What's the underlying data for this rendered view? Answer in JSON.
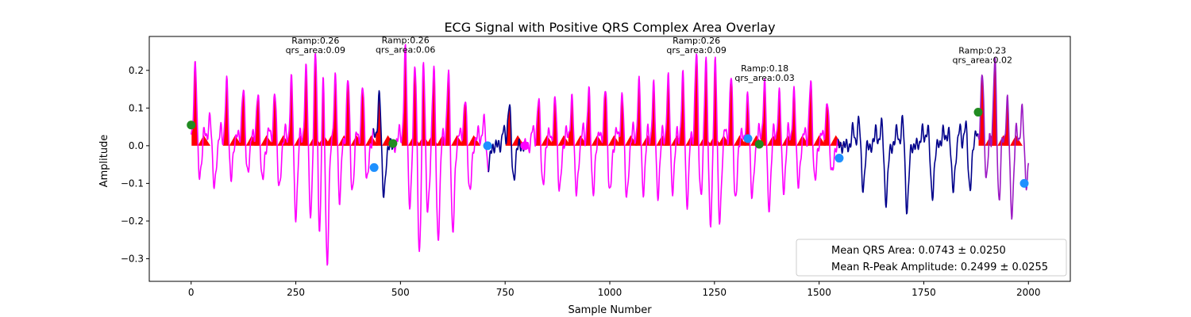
{
  "chart_data": {
    "type": "line",
    "title": "ECG Signal with Positive QRS Complex Area Overlay",
    "xlabel": "Sample Number",
    "ylabel": "Amplitude",
    "xlim": [
      -100,
      2100
    ],
    "ylim": [
      -0.36,
      0.29
    ],
    "x_ticks": [
      0,
      250,
      500,
      750,
      1000,
      1250,
      1500,
      1750,
      2000
    ],
    "x_tick_labels": [
      "0",
      "250",
      "500",
      "750",
      "1000",
      "1250",
      "1500",
      "1750",
      "2000"
    ],
    "y_ticks": [
      -0.3,
      -0.2,
      -0.1,
      0.0,
      0.1,
      0.2
    ],
    "y_tick_labels": [
      "−0.3",
      "−0.2",
      "−0.1",
      "0.0",
      "0.1",
      "0.2"
    ],
    "grid": false,
    "legend_placement": "lower-right",
    "legend": [
      "Mean QRS Area: 0.0743 ± 0.0250",
      "Mean R-Peak Amplitude: 0.2499 ± 0.0255"
    ],
    "colors": {
      "signal_navy": "#00008b",
      "segment_magenta": "#ff00ff",
      "segment_purple": "#9c1ac4",
      "qrs_fill": "#ff0000",
      "boundary_green": "#228b22",
      "boundary_blue": "#1e90ff",
      "boundary_magenta": "#ff00ff"
    },
    "segments": [
      {
        "start": 0,
        "end": 435,
        "color": "#ff00ff"
      },
      {
        "start": 435,
        "end": 485,
        "color": "#00008b"
      },
      {
        "start": 485,
        "end": 710,
        "color": "#ff00ff"
      },
      {
        "start": 710,
        "end": 795,
        "color": "#00008b"
      },
      {
        "start": 795,
        "end": 1330,
        "color": "#ff00ff"
      },
      {
        "start": 1330,
        "end": 1545,
        "color": "#ff00ff"
      },
      {
        "start": 1545,
        "end": 1880,
        "color": "#00008b"
      },
      {
        "start": 1880,
        "end": 2000,
        "color": "#9c1ac4"
      }
    ],
    "beat_peaks": [
      {
        "x": 10,
        "amp": 0.23,
        "depth": -0.09
      },
      {
        "x": 45,
        "amp": 0.09,
        "depth": -0.11
      },
      {
        "x": 85,
        "amp": 0.17,
        "depth": -0.08
      },
      {
        "x": 125,
        "amp": 0.16,
        "depth": -0.08
      },
      {
        "x": 160,
        "amp": 0.15,
        "depth": -0.1
      },
      {
        "x": 200,
        "amp": 0.15,
        "depth": -0.11
      },
      {
        "x": 240,
        "amp": 0.18,
        "depth": -0.19
      },
      {
        "x": 275,
        "amp": 0.21,
        "depth": -0.22
      },
      {
        "x": 297,
        "amp": 0.25,
        "depth": -0.26
      },
      {
        "x": 315,
        "amp": 0.23,
        "depth": -0.33
      },
      {
        "x": 345,
        "amp": 0.19,
        "depth": -0.16
      },
      {
        "x": 375,
        "amp": 0.18,
        "depth": -0.12
      },
      {
        "x": 410,
        "amp": 0.16,
        "depth": -0.09
      },
      {
        "x": 450,
        "amp": 0.15,
        "depth": -0.14
      },
      {
        "x": 512,
        "amp": 0.26,
        "depth": -0.2
      },
      {
        "x": 535,
        "amp": 0.23,
        "depth": -0.32
      },
      {
        "x": 555,
        "amp": 0.25,
        "depth": -0.22
      },
      {
        "x": 580,
        "amp": 0.21,
        "depth": -0.25
      },
      {
        "x": 615,
        "amp": 0.2,
        "depth": -0.23
      },
      {
        "x": 655,
        "amp": 0.14,
        "depth": -0.13
      },
      {
        "x": 700,
        "amp": 0.07,
        "depth": -0.06
      },
      {
        "x": 760,
        "amp": 0.12,
        "depth": -0.09
      },
      {
        "x": 830,
        "amp": 0.13,
        "depth": -0.1
      },
      {
        "x": 870,
        "amp": 0.13,
        "depth": -0.12
      },
      {
        "x": 910,
        "amp": 0.14,
        "depth": -0.13
      },
      {
        "x": 950,
        "amp": 0.15,
        "depth": -0.12
      },
      {
        "x": 990,
        "amp": 0.16,
        "depth": -0.13
      },
      {
        "x": 1030,
        "amp": 0.15,
        "depth": -0.14
      },
      {
        "x": 1070,
        "amp": 0.17,
        "depth": -0.12
      },
      {
        "x": 1105,
        "amp": 0.16,
        "depth": -0.13
      },
      {
        "x": 1140,
        "amp": 0.18,
        "depth": -0.12
      },
      {
        "x": 1175,
        "amp": 0.19,
        "depth": -0.16
      },
      {
        "x": 1207,
        "amp": 0.25,
        "depth": -0.17
      },
      {
        "x": 1230,
        "amp": 0.24,
        "depth": -0.25
      },
      {
        "x": 1252,
        "amp": 0.24,
        "depth": -0.2
      },
      {
        "x": 1290,
        "amp": 0.19,
        "depth": -0.14
      },
      {
        "x": 1330,
        "amp": 0.14,
        "depth": -0.14
      },
      {
        "x": 1370,
        "amp": 0.18,
        "depth": -0.17
      },
      {
        "x": 1405,
        "amp": 0.15,
        "depth": -0.12
      },
      {
        "x": 1440,
        "amp": 0.15,
        "depth": -0.1
      },
      {
        "x": 1480,
        "amp": 0.17,
        "depth": -0.09
      },
      {
        "x": 1520,
        "amp": 0.13,
        "depth": -0.08
      },
      {
        "x": 1595,
        "amp": 0.07,
        "depth": -0.11
      },
      {
        "x": 1650,
        "amp": 0.06,
        "depth": -0.15
      },
      {
        "x": 1700,
        "amp": 0.07,
        "depth": -0.17
      },
      {
        "x": 1760,
        "amp": 0.06,
        "depth": -0.14
      },
      {
        "x": 1810,
        "amp": 0.05,
        "depth": -0.12
      },
      {
        "x": 1850,
        "amp": 0.06,
        "depth": -0.11
      },
      {
        "x": 1890,
        "amp": 0.2,
        "depth": -0.1
      },
      {
        "x": 1920,
        "amp": 0.23,
        "depth": -0.15
      },
      {
        "x": 1950,
        "amp": 0.13,
        "depth": -0.18
      },
      {
        "x": 1985,
        "amp": 0.1,
        "depth": -0.1
      }
    ],
    "boundary_markers": [
      {
        "x": 0,
        "y": 0.055,
        "color": "#228b22"
      },
      {
        "x": 437,
        "y": -0.058,
        "color": "#1e90ff"
      },
      {
        "x": 482,
        "y": 0.006,
        "color": "#228b22"
      },
      {
        "x": 708,
        "y": 0.0,
        "color": "#1e90ff"
      },
      {
        "x": 797,
        "y": 0.0,
        "color": "#ff00ff"
      },
      {
        "x": 1330,
        "y": 0.019,
        "color": "#1e90ff"
      },
      {
        "x": 1357,
        "y": 0.004,
        "color": "#228b22"
      },
      {
        "x": 1548,
        "y": -0.033,
        "color": "#1e90ff"
      },
      {
        "x": 1880,
        "y": 0.089,
        "color": "#228b22"
      },
      {
        "x": 1990,
        "y": -0.1,
        "color": "#1e90ff"
      }
    ],
    "annotations": [
      {
        "line1": "Ramp:0.26",
        "line2": "qrs_area:0.09",
        "x": 297,
        "y": 0.258
      },
      {
        "line1": "Ramp:0.26",
        "line2": "qrs_area:0.06",
        "x": 512,
        "y": 0.26
      },
      {
        "line1": "Ramp:0.26",
        "line2": "qrs_area:0.09",
        "x": 1207,
        "y": 0.258
      },
      {
        "line1": "Ramp:0.18",
        "line2": "qrs_area:0.03",
        "x": 1370,
        "y": 0.185
      },
      {
        "line1": "Ramp:0.23",
        "line2": "qrs_area:0.02",
        "x": 1890,
        "y": 0.232
      }
    ]
  }
}
